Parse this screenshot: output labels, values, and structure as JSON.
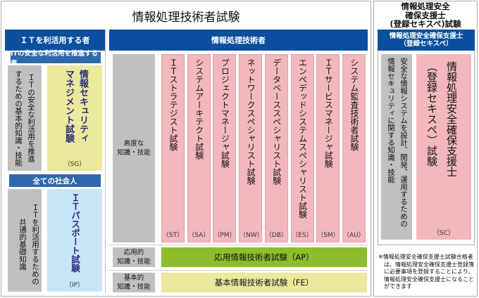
{
  "main": {
    "title": "情報処理技術者試験",
    "it_users": {
      "header": "ＩＴを利活用する者",
      "promoters": {
        "label": "ITの安全な利活用を推進する者",
        "skill": "ＩＴの安全な利活用を推進\nするための基本的知識・技能",
        "exam": "情報セキュリティ\nマネジメント試験",
        "code": "（SG）"
      },
      "all": {
        "label": "全ての社会人",
        "skill": "ＩＴを利活用するための\n共通的基礎知識",
        "exam": "ＩＴパスポート試験",
        "code": "（IP）"
      }
    },
    "engineers": {
      "header": "情報処理技術者",
      "levels": {
        "advanced": "高度な\n知識・技能",
        "applied": "応用的\n知識・技能",
        "basic": "基本的\n知識・技能"
      },
      "advanced_exams": [
        {
          "name": "ＩＴストラテジスト試験",
          "code": "（ST）"
        },
        {
          "name": "システムアーキテクト試験",
          "code": "（SA）"
        },
        {
          "name": "プロジェクトマネージャ試験",
          "code": "（PM）"
        },
        {
          "name": "ネットワークスペシャリスト試験",
          "code": "（NW）"
        },
        {
          "name": "データベーススペシャリスト試験",
          "code": "（DB）"
        },
        {
          "name": "エンベデッドシステムスペシャリスト試験",
          "code": "（ES）"
        },
        {
          "name": "ＩＴサービスマネージャ試験",
          "code": "（SM）"
        },
        {
          "name": "システム監査技術者試験",
          "code": "（AU）"
        }
      ],
      "applied_exam": "応用情報技術者試験（AP）",
      "basic_exam": "基本情報技術者試験（FE）"
    }
  },
  "side": {
    "title": "情報処理安全\n確保支援士\n(登録セキスペ)試験",
    "header": "情報処理安全確保支援士\n（登録セキスペ）",
    "skill": "安全な情報システムを設計、開発、運用するための\n情報セキュリティに関する知識・技能",
    "exam": "情報処理安全確保支援士\n（登録セキスペ）試験",
    "code": "（SC）",
    "note": "※情報処理安全確保支援士試験合格者は、情報処理安全確保支援士登録簿に必要事項を登録することにより、情報処理安全確保支援士になることができます"
  },
  "colors": {
    "header_blue": "#0b4f9e",
    "sub_blue": "#2f68ab",
    "gray": "#c0c0c0",
    "yellow": "#ece89c",
    "light_blue": "#c7e5f7",
    "pink": "#f2b8bd",
    "green": "#8cbd2a",
    "exam_text": "#2a2a80"
  }
}
